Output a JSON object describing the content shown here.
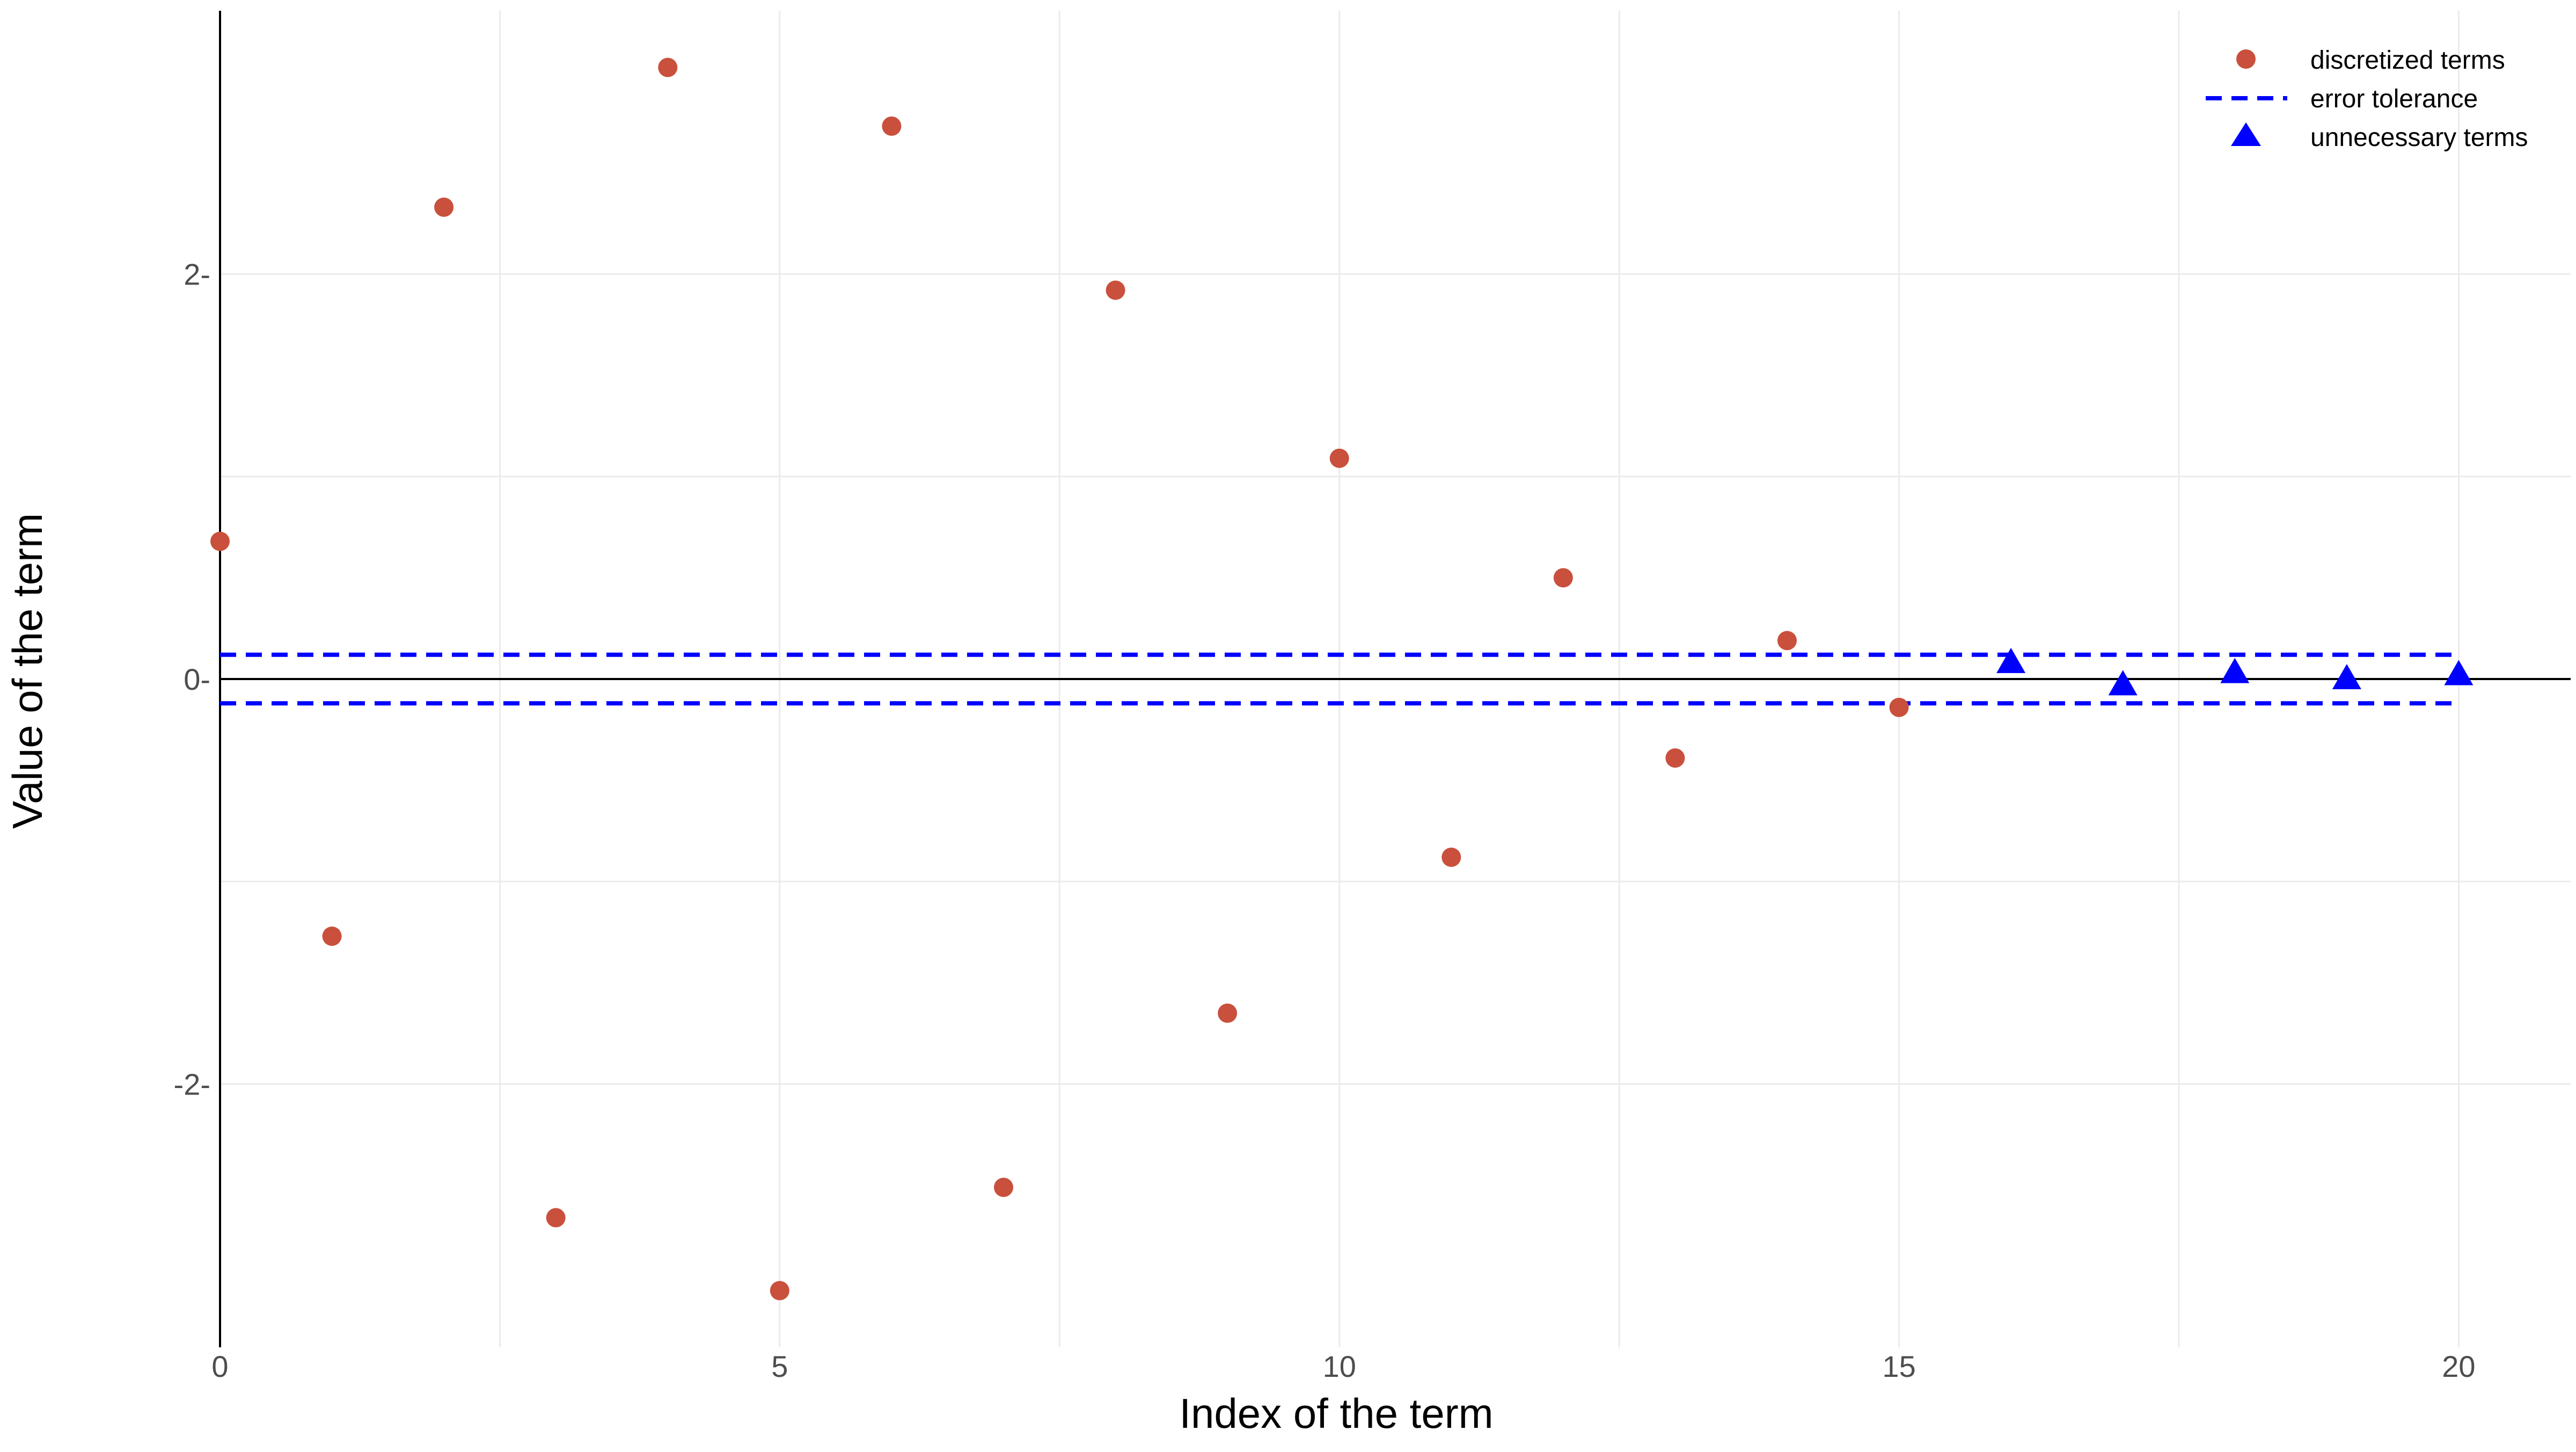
{
  "chart_data": {
    "type": "scatter",
    "title": "",
    "xlabel": "Index of the term",
    "ylabel": "Value of the term",
    "xlim": [
      0,
      21
    ],
    "ylim": [
      -3.3,
      3.3
    ],
    "x_ticks": [
      0,
      5,
      10,
      15,
      20
    ],
    "x_tick_labels": [
      "0",
      "5",
      "10",
      "15",
      "20"
    ],
    "y_ticks": [
      -2,
      0,
      2
    ],
    "y_tick_labels": [
      "-2",
      "0",
      "2"
    ],
    "grid": true,
    "legend_position": "top-right",
    "series": [
      {
        "name": "discretized terms",
        "marker": "circle",
        "color": "#c9503c",
        "x": [
          0,
          1,
          2,
          3,
          4,
          5,
          6,
          7,
          8,
          9,
          10,
          11,
          12,
          13,
          14,
          15
        ],
        "y": [
          0.68,
          -1.27,
          2.33,
          -2.66,
          3.02,
          -3.02,
          2.73,
          -2.51,
          1.92,
          -1.65,
          1.09,
          -0.88,
          0.5,
          -0.39,
          0.19,
          -0.14
        ]
      },
      {
        "name": "error tolerance",
        "marker": "dashed-line",
        "color": "#0000ff",
        "x_range": [
          0,
          20
        ],
        "y": [
          0.12,
          -0.12
        ]
      },
      {
        "name": "unnecessary terms",
        "marker": "triangle",
        "color": "#0000ff",
        "x": [
          16,
          17,
          18,
          19,
          20
        ],
        "y": [
          0.08,
          -0.03,
          0.03,
          0.0,
          0.02
        ]
      }
    ]
  }
}
